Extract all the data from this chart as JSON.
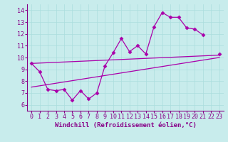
{
  "title": "",
  "xlabel": "Windchill (Refroidissement éolien,°C)",
  "ylabel": "",
  "background_color": "#c8ecec",
  "line_color": "#aa00aa",
  "x_data": [
    0,
    1,
    2,
    3,
    4,
    5,
    6,
    7,
    8,
    9,
    10,
    11,
    12,
    13,
    14,
    15,
    16,
    17,
    18,
    19,
    20,
    21,
    22,
    23
  ],
  "y_main": [
    9.5,
    8.8,
    7.3,
    7.2,
    7.3,
    6.4,
    7.2,
    6.5,
    7.0,
    9.3,
    10.4,
    11.6,
    10.5,
    11.0,
    10.3,
    12.6,
    13.8,
    13.4,
    13.4,
    12.5,
    12.4,
    11.9,
    null,
    10.3
  ],
  "y_reg_upper_start": 9.5,
  "y_reg_upper_end": 10.2,
  "y_reg_lower_start": 7.5,
  "y_reg_lower_end": 10.0,
  "xlim": [
    -0.5,
    23.5
  ],
  "ylim": [
    5.5,
    14.5
  ],
  "yticks": [
    6,
    7,
    8,
    9,
    10,
    11,
    12,
    13,
    14
  ],
  "xticks": [
    0,
    1,
    2,
    3,
    4,
    5,
    6,
    7,
    8,
    9,
    10,
    11,
    12,
    13,
    14,
    15,
    16,
    17,
    18,
    19,
    20,
    21,
    22,
    23
  ],
  "grid_color": "#aadddd",
  "marker": "D",
  "marker_size": 2.5,
  "line_width": 0.9,
  "font_color": "#880088",
  "xlabel_fontsize": 6.5,
  "tick_fontsize": 6.0
}
